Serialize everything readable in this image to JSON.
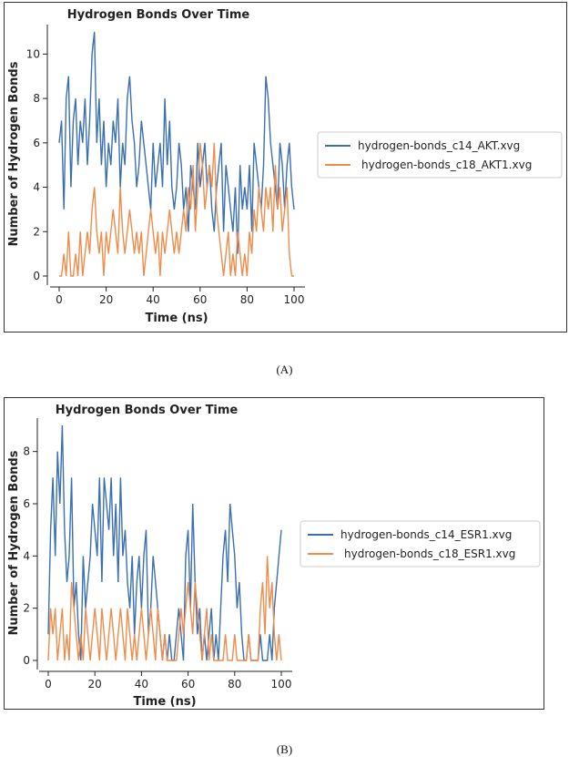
{
  "figure": {
    "captions": [
      "(A)",
      "(B)"
    ]
  },
  "colors": {
    "c14": "#3a6fb0",
    "c18": "#ee8c4a"
  },
  "chart_data": [
    {
      "type": "line",
      "title": "Hydrogen Bonds Over Time",
      "xlabel": "Time (ns)",
      "ylabel": "Number of Hydrogen Bonds",
      "xlim": [
        0,
        100
      ],
      "ylim": [
        0,
        11
      ],
      "xticks": [
        0,
        20,
        40,
        60,
        80,
        100
      ],
      "yticks": [
        0,
        2,
        4,
        6,
        8,
        10
      ],
      "legend": {
        "position": "right"
      },
      "series": [
        {
          "name": "hydrogen-bonds_c14_AKT.xvg",
          "color": "#3a6fb0",
          "x": [
            0,
            1,
            2,
            3,
            4,
            5,
            6,
            7,
            8,
            9,
            10,
            11,
            12,
            13,
            14,
            15,
            16,
            17,
            18,
            19,
            20,
            21,
            22,
            23,
            24,
            25,
            26,
            27,
            28,
            29,
            30,
            31,
            32,
            33,
            34,
            35,
            36,
            37,
            38,
            39,
            40,
            41,
            42,
            43,
            44,
            45,
            46,
            47,
            48,
            49,
            50,
            51,
            52,
            53,
            54,
            55,
            56,
            57,
            58,
            59,
            60,
            61,
            62,
            63,
            64,
            65,
            66,
            67,
            68,
            69,
            70,
            71,
            72,
            73,
            74,
            75,
            76,
            77,
            78,
            79,
            80,
            81,
            82,
            83,
            84,
            85,
            86,
            87,
            88,
            89,
            90,
            91,
            92,
            93,
            94,
            95,
            96,
            97,
            98,
            99,
            100
          ],
          "y": [
            6,
            7,
            3,
            8,
            9,
            4,
            7,
            8,
            5,
            7,
            6,
            8,
            5,
            7,
            10,
            11,
            6,
            8,
            5,
            7,
            4,
            6,
            5,
            7,
            6,
            8,
            4,
            6,
            5,
            8,
            9,
            7,
            6,
            4,
            5,
            7,
            6,
            5,
            4,
            3,
            6,
            4,
            5,
            6,
            4,
            8,
            5,
            7,
            4,
            3,
            4,
            6,
            5,
            3,
            4,
            2,
            5,
            4,
            3,
            6,
            4,
            5,
            6,
            4,
            5,
            3,
            2,
            4,
            5,
            6,
            2,
            5,
            4,
            3,
            2,
            4,
            1,
            5,
            3,
            4,
            3,
            5,
            2,
            6,
            5,
            4,
            3,
            5,
            9,
            8,
            6,
            5,
            4,
            3,
            6,
            5,
            3,
            5,
            6,
            4,
            3
          ]
        },
        {
          "name": "hydrogen-bonds_c18_AKT1.xvg",
          "color": "#ee8c4a",
          "x": [
            0,
            1,
            2,
            3,
            4,
            5,
            6,
            7,
            8,
            9,
            10,
            11,
            12,
            13,
            14,
            15,
            16,
            17,
            18,
            19,
            20,
            21,
            22,
            23,
            24,
            25,
            26,
            27,
            28,
            29,
            30,
            31,
            32,
            33,
            34,
            35,
            36,
            37,
            38,
            39,
            40,
            41,
            42,
            43,
            44,
            45,
            46,
            47,
            48,
            49,
            50,
            51,
            52,
            53,
            54,
            55,
            56,
            57,
            58,
            59,
            60,
            61,
            62,
            63,
            64,
            65,
            66,
            67,
            68,
            69,
            70,
            71,
            72,
            73,
            74,
            75,
            76,
            77,
            78,
            79,
            80,
            81,
            82,
            83,
            84,
            85,
            86,
            87,
            88,
            89,
            90,
            91,
            92,
            93,
            94,
            95,
            96,
            97,
            98,
            99,
            100
          ],
          "y": [
            0,
            0,
            1,
            0,
            2,
            0,
            0,
            1,
            0,
            2,
            0,
            1,
            2,
            1,
            3,
            4,
            2,
            1,
            2,
            0,
            2,
            1,
            2,
            3,
            2,
            1,
            4,
            2,
            1,
            2,
            3,
            2,
            1,
            2,
            1,
            2,
            0,
            1,
            2,
            3,
            2,
            1,
            2,
            0,
            2,
            1,
            2,
            3,
            2,
            1,
            2,
            1,
            2,
            3,
            2,
            4,
            3,
            5,
            2,
            4,
            6,
            5,
            3,
            4,
            5,
            4,
            6,
            3,
            2,
            1,
            0,
            1,
            2,
            0,
            1,
            0,
            2,
            1,
            0,
            1,
            0,
            2,
            1,
            3,
            2,
            4,
            3,
            2,
            4,
            3,
            4,
            2,
            5,
            3,
            4,
            2,
            3,
            4,
            1,
            0,
            0
          ]
        }
      ]
    },
    {
      "type": "line",
      "title": "Hydrogen Bonds Over Time",
      "xlabel": "Time (ns)",
      "ylabel": "Number of Hydrogen Bonds",
      "xlim": [
        0,
        100
      ],
      "ylim": [
        0,
        9
      ],
      "xticks": [
        0,
        20,
        40,
        60,
        80,
        100
      ],
      "yticks": [
        0,
        2,
        4,
        6,
        8
      ],
      "legend": {
        "position": "right"
      },
      "series": [
        {
          "name": "hydrogen-bonds_c14_ESR1.xvg",
          "color": "#3a6fb0",
          "x": [
            0,
            1,
            2,
            3,
            4,
            5,
            6,
            7,
            8,
            9,
            10,
            11,
            12,
            13,
            14,
            15,
            16,
            17,
            18,
            19,
            20,
            21,
            22,
            23,
            24,
            25,
            26,
            27,
            28,
            29,
            30,
            31,
            32,
            33,
            34,
            35,
            36,
            37,
            38,
            39,
            40,
            41,
            42,
            43,
            44,
            45,
            46,
            47,
            48,
            49,
            50,
            51,
            52,
            53,
            54,
            55,
            56,
            57,
            58,
            59,
            60,
            61,
            62,
            63,
            64,
            65,
            66,
            67,
            68,
            69,
            70,
            71,
            72,
            73,
            74,
            75,
            76,
            77,
            78,
            79,
            80,
            81,
            82,
            83,
            84,
            85,
            86,
            87,
            88,
            89,
            90,
            91,
            92,
            93,
            94,
            95,
            96,
            97,
            98,
            99,
            100
          ],
          "y": [
            1,
            5,
            7,
            4,
            8,
            6,
            9,
            5,
            3,
            4,
            7,
            2,
            3,
            1,
            0,
            4,
            2,
            3,
            4,
            6,
            5,
            4,
            7,
            3,
            7,
            6,
            5,
            7,
            4,
            6,
            3,
            7,
            4,
            5,
            3,
            2,
            4,
            1,
            3,
            4,
            2,
            4,
            5,
            1,
            2,
            4,
            3,
            2,
            1,
            0,
            1,
            0,
            1,
            0,
            0,
            1,
            2,
            1,
            0,
            4,
            5,
            2,
            6,
            3,
            1,
            2,
            0,
            1,
            0,
            1,
            2,
            0,
            1,
            0,
            2,
            4,
            5,
            3,
            6,
            5,
            4,
            2,
            3,
            1,
            0,
            0,
            1,
            0,
            0,
            0,
            0,
            1,
            0,
            0,
            0,
            1,
            0,
            2,
            3,
            4,
            5
          ]
        },
        {
          "name": "hydrogen-bonds_c18_ESR1.xvg",
          "color": "#ee8c4a",
          "x": [
            0,
            1,
            2,
            3,
            4,
            5,
            6,
            7,
            8,
            9,
            10,
            11,
            12,
            13,
            14,
            15,
            16,
            17,
            18,
            19,
            20,
            21,
            22,
            23,
            24,
            25,
            26,
            27,
            28,
            29,
            30,
            31,
            32,
            33,
            34,
            35,
            36,
            37,
            38,
            39,
            40,
            41,
            42,
            43,
            44,
            45,
            46,
            47,
            48,
            49,
            50,
            51,
            52,
            53,
            54,
            55,
            56,
            57,
            58,
            59,
            60,
            61,
            62,
            63,
            64,
            65,
            66,
            67,
            68,
            69,
            70,
            71,
            72,
            73,
            74,
            75,
            76,
            77,
            78,
            79,
            80,
            81,
            82,
            83,
            84,
            85,
            86,
            87,
            88,
            89,
            90,
            91,
            92,
            93,
            94,
            95,
            96,
            97,
            98,
            99,
            100
          ],
          "y": [
            0,
            2,
            1,
            2,
            0,
            1,
            2,
            0,
            1,
            0,
            3,
            2,
            1,
            0,
            1,
            0,
            2,
            1,
            0,
            1,
            2,
            1,
            0,
            2,
            1,
            0,
            1,
            2,
            1,
            0,
            1,
            2,
            1,
            0,
            2,
            1,
            0,
            1,
            0,
            1,
            2,
            1,
            0,
            1,
            2,
            1,
            0,
            2,
            1,
            0,
            1,
            0,
            0,
            0,
            0,
            0,
            1,
            2,
            1,
            2,
            3,
            2,
            1,
            3,
            2,
            1,
            0,
            1,
            2,
            0,
            1,
            0,
            0,
            0,
            0,
            0,
            1,
            0,
            0,
            0,
            1,
            0,
            0,
            0,
            0,
            0,
            1,
            0,
            0,
            0,
            0,
            2,
            3,
            1,
            4,
            2,
            3,
            1,
            0,
            1,
            0
          ]
        }
      ]
    }
  ]
}
